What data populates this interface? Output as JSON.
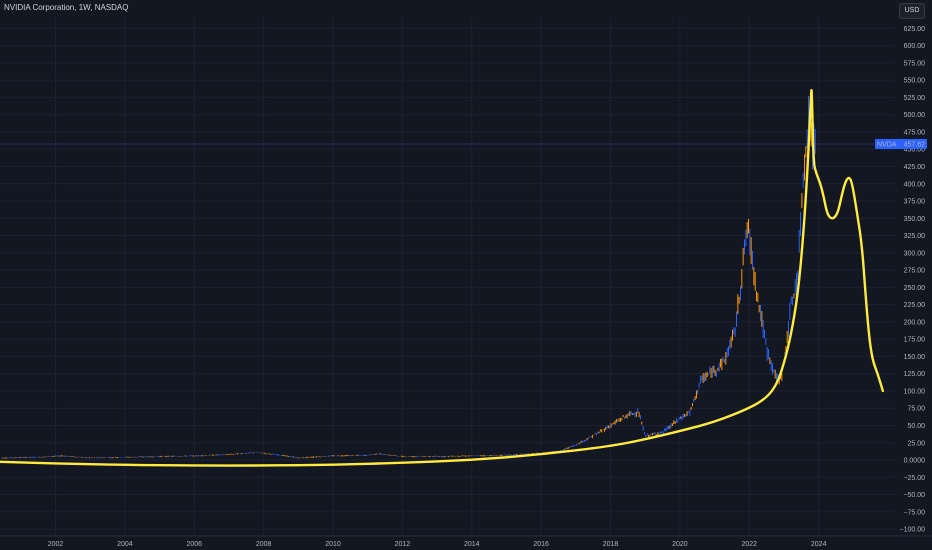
{
  "header": {
    "title": "NVIDIA Corporation, 1W, NASDAQ",
    "currency": "USD"
  },
  "price_tag": {
    "symbol": "NVDA",
    "value": "457.62"
  },
  "colors": {
    "background": "#131722",
    "up": "#2962ff",
    "down": "#ff9800",
    "annotation": "#ffeb3b",
    "price_line": "#2a2e5a",
    "tag": "#2962ff"
  },
  "chart_data": {
    "type": "line",
    "title": "NVIDIA Corporation, 1W, NASDAQ",
    "xlabel": "",
    "ylabel": "",
    "xlim": [
      2000.4,
      2026.2
    ],
    "ylim": [
      -110,
      640
    ],
    "x_ticks": [
      "2002",
      "2004",
      "2006",
      "2008",
      "2010",
      "2012",
      "2014",
      "2016",
      "2018",
      "2020",
      "2022",
      "2024"
    ],
    "y_ticks": [
      "625.00",
      "600.00",
      "575.00",
      "550.00",
      "525.00",
      "500.00",
      "475.00",
      "450.00",
      "425.00",
      "400.00",
      "375.00",
      "350.00",
      "325.00",
      "300.00",
      "275.00",
      "250.00",
      "225.00",
      "200.00",
      "175.00",
      "150.00",
      "125.00",
      "100.00",
      "75.00",
      "50.00",
      "25.00",
      "0.0000",
      "−25.00",
      "−50.00",
      "−75.00",
      "−100.00"
    ],
    "series": [
      {
        "values": [
          [
            2000.4,
            3
          ],
          [
            2001.5,
            4
          ],
          [
            2002.2,
            6
          ],
          [
            2003.0,
            3
          ],
          [
            2004.0,
            4
          ],
          [
            2005.0,
            5
          ],
          [
            2006.0,
            6
          ],
          [
            2007.0,
            8
          ],
          [
            2007.8,
            11
          ],
          [
            2008.5,
            7
          ],
          [
            2009.0,
            3
          ],
          [
            2010.0,
            6
          ],
          [
            2011.0,
            7
          ],
          [
            2011.3,
            9
          ],
          [
            2012.0,
            5
          ],
          [
            2013.0,
            5
          ],
          [
            2014.0,
            6
          ],
          [
            2015.0,
            7
          ],
          [
            2016.0,
            10
          ],
          [
            2016.6,
            14
          ],
          [
            2017.0,
            22
          ],
          [
            2017.5,
            35
          ],
          [
            2018.0,
            50
          ],
          [
            2018.5,
            65
          ],
          [
            2018.8,
            70
          ],
          [
            2019.0,
            35
          ],
          [
            2019.5,
            40
          ],
          [
            2020.0,
            60
          ],
          [
            2020.3,
            70
          ],
          [
            2020.6,
            115
          ],
          [
            2021.0,
            130
          ],
          [
            2021.3,
            145
          ],
          [
            2021.6,
            190
          ],
          [
            2021.85,
            300
          ],
          [
            2021.95,
            340
          ],
          [
            2022.2,
            250
          ],
          [
            2022.5,
            160
          ],
          [
            2022.8,
            115
          ],
          [
            2022.95,
            125
          ],
          [
            2023.2,
            220
          ],
          [
            2023.4,
            270
          ],
          [
            2023.55,
            410
          ],
          [
            2023.65,
            470
          ],
          [
            2023.72,
            490
          ],
          [
            2023.85,
            450
          ],
          [
            2023.9,
            457.62
          ]
        ]
      }
    ],
    "annotation_curve": [
      [
        2000.0,
        -2
      ],
      [
        2002.0,
        -5
      ],
      [
        2004.0,
        -7
      ],
      [
        2006.0,
        -8
      ],
      [
        2008.0,
        -8
      ],
      [
        2010.0,
        -7
      ],
      [
        2012.0,
        -4
      ],
      [
        2014.0,
        0
      ],
      [
        2016.0,
        8
      ],
      [
        2018.0,
        20
      ],
      [
        2019.0,
        30
      ],
      [
        2020.0,
        42
      ],
      [
        2021.0,
        55
      ],
      [
        2022.0,
        75
      ],
      [
        2022.5,
        90
      ],
      [
        2022.8,
        110
      ],
      [
        2023.0,
        140
      ],
      [
        2023.2,
        180
      ],
      [
        2023.4,
        240
      ],
      [
        2023.55,
        320
      ],
      [
        2023.68,
        420
      ],
      [
        2023.78,
        530
      ],
      [
        2023.8,
        540
      ],
      [
        2023.85,
        430
      ],
      [
        2023.93,
        415
      ],
      [
        2024.05,
        400
      ],
      [
        2024.15,
        380
      ],
      [
        2024.25,
        355
      ],
      [
        2024.4,
        348
      ],
      [
        2024.55,
        357
      ],
      [
        2024.65,
        380
      ],
      [
        2024.75,
        400
      ],
      [
        2024.85,
        410
      ],
      [
        2024.95,
        405
      ],
      [
        2025.1,
        360
      ],
      [
        2025.25,
        310
      ],
      [
        2025.35,
        240
      ],
      [
        2025.45,
        180
      ],
      [
        2025.55,
        145
      ],
      [
        2025.7,
        125
      ],
      [
        2025.85,
        100
      ]
    ]
  }
}
